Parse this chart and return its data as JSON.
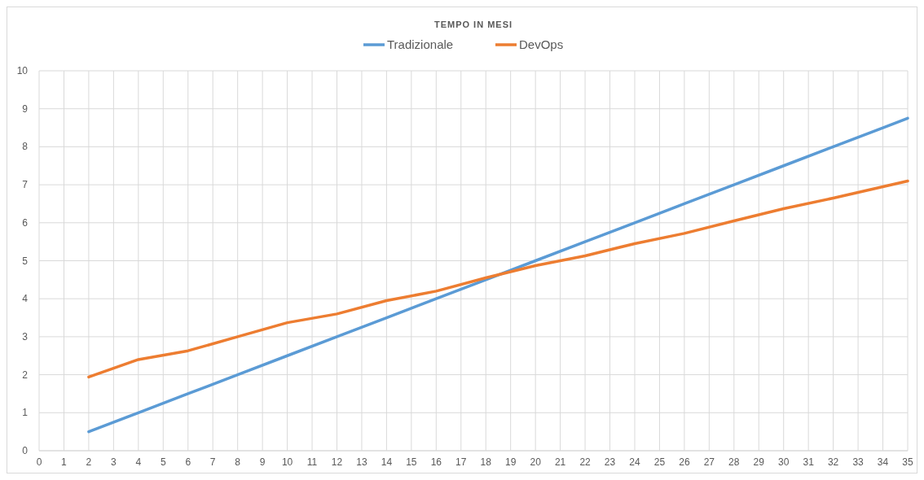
{
  "chart_data": {
    "type": "line",
    "title": "TEMPO IN MESI",
    "xlim": [
      0,
      35
    ],
    "xticks": [
      0,
      1,
      2,
      3,
      4,
      5,
      6,
      7,
      8,
      9,
      10,
      11,
      12,
      13,
      14,
      15,
      16,
      17,
      18,
      19,
      20,
      21,
      22,
      23,
      24,
      25,
      26,
      27,
      28,
      29,
      30,
      31,
      32,
      33,
      34,
      35
    ],
    "ylim": [
      0,
      10
    ],
    "yticks": [
      0,
      1,
      2,
      3,
      4,
      5,
      6,
      7,
      8,
      9,
      10
    ],
    "grid": true,
    "legend": "top",
    "line_style": "solid",
    "series": [
      {
        "name": "Tradizionale",
        "color": "#5b9bd5",
        "x": [
          2,
          4,
          6,
          8,
          10,
          12,
          14,
          16,
          18,
          20,
          22,
          24,
          26,
          28,
          30,
          32,
          34,
          35
        ],
        "values": [
          0.5,
          1,
          1.5,
          2,
          2.5,
          3,
          3.5,
          4,
          4.5,
          5,
          5.5,
          6,
          6.5,
          7,
          7.5,
          8,
          8.5,
          8.75
        ]
      },
      {
        "name": "DevOps",
        "color": "#ed7d31",
        "x": [
          2,
          4,
          6,
          8,
          10,
          12,
          14,
          16,
          18,
          20,
          22,
          24,
          26,
          28,
          30,
          32,
          34,
          35
        ],
        "values": [
          1.94,
          2.4,
          2.63,
          3.0,
          3.37,
          3.6,
          3.95,
          4.2,
          4.55,
          4.87,
          5.13,
          5.45,
          5.72,
          6.05,
          6.37,
          6.65,
          6.95,
          7.1
        ]
      }
    ]
  }
}
